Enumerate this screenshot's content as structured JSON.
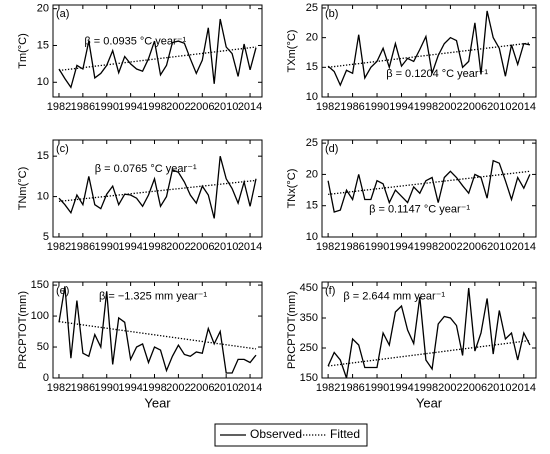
{
  "chart_data": [
    {
      "type": "line",
      "label": "(a)",
      "ylabel": "Tm(°C)",
      "annotation": "β = 0.0935 °C year⁻¹",
      "x": [
        1982,
        1983,
        1984,
        1985,
        1986,
        1987,
        1988,
        1989,
        1990,
        1991,
        1992,
        1993,
        1994,
        1995,
        1996,
        1997,
        1998,
        1999,
        2000,
        2001,
        2002,
        2003,
        2004,
        2005,
        2006,
        2007,
        2008,
        2009,
        2010,
        2011,
        2012,
        2013,
        2014,
        2015
      ],
      "xlim": [
        1981,
        2016
      ],
      "xticks": [
        1982,
        1986,
        1990,
        1994,
        1998,
        2002,
        2006,
        2010,
        2014
      ],
      "ylim": [
        8,
        20.5
      ],
      "yticks": [
        10,
        15,
        20
      ],
      "series": [
        {
          "name": "Observed",
          "color": "#000000",
          "values": [
            11.8,
            10.5,
            9.3,
            12.3,
            11.8,
            15.6,
            10.6,
            11.2,
            12.3,
            14.3,
            11.3,
            13.5,
            12.5,
            11.8,
            11.5,
            13.2,
            15.6,
            11.0,
            12.3,
            15.4,
            15.6,
            15.3,
            13.2,
            11.2,
            13.0,
            17.4,
            9.8,
            18.6,
            14.8,
            13.9,
            10.8,
            15.2,
            11.7,
            14.7
          ]
        },
        {
          "name": "Fitted",
          "color": "#000000",
          "style": "dotted",
          "x": [
            1982,
            2015
          ],
          "values": [
            11.6,
            14.8
          ]
        }
      ]
    },
    {
      "type": "line",
      "label": "(b)",
      "ylabel": "TXm(°C)",
      "annotation": "β = 0.1204 °C year⁻¹",
      "x": [
        1982,
        1983,
        1984,
        1985,
        1986,
        1987,
        1988,
        1989,
        1990,
        1991,
        1992,
        1993,
        1994,
        1995,
        1996,
        1997,
        1998,
        1999,
        2000,
        2001,
        2002,
        2003,
        2004,
        2005,
        2006,
        2007,
        2008,
        2009,
        2010,
        2011,
        2012,
        2013,
        2014,
        2015
      ],
      "xlim": [
        1981,
        2016
      ],
      "xticks": [
        1982,
        1986,
        1990,
        1994,
        1998,
        2002,
        2006,
        2010,
        2014
      ],
      "ylim": [
        10,
        25.5
      ],
      "yticks": [
        10,
        15,
        20,
        25
      ],
      "series": [
        {
          "name": "Observed",
          "color": "#000000",
          "values": [
            15.2,
            14.3,
            12.0,
            14.5,
            14.0,
            20.5,
            13.2,
            15.0,
            16.0,
            18.2,
            15.0,
            19.0,
            15.2,
            16.5,
            16.0,
            18.0,
            20.2,
            14.0,
            17.0,
            19.0,
            20.0,
            19.5,
            15.0,
            16.0,
            22.5,
            13.8,
            24.5,
            20.0,
            18.2,
            13.5,
            18.8,
            15.5,
            19.0,
            18.8
          ]
        },
        {
          "name": "Fitted",
          "color": "#000000",
          "style": "dotted",
          "x": [
            1982,
            2015
          ],
          "values": [
            15.0,
            19.1
          ]
        }
      ]
    },
    {
      "type": "line",
      "label": "(c)",
      "ylabel": "TNm(°C)",
      "annotation": "β = 0.0765 °C year⁻¹",
      "x": [
        1982,
        1983,
        1984,
        1985,
        1986,
        1987,
        1988,
        1989,
        1990,
        1991,
        1992,
        1993,
        1994,
        1995,
        1996,
        1997,
        1998,
        1999,
        2000,
        2001,
        2002,
        2003,
        2004,
        2005,
        2006,
        2007,
        2008,
        2009,
        2010,
        2011,
        2012,
        2013,
        2014,
        2015
      ],
      "xlim": [
        1981,
        2016
      ],
      "xticks": [
        1982,
        1986,
        1990,
        1994,
        1998,
        2002,
        2006,
        2010,
        2014
      ],
      "ylim": [
        5,
        17
      ],
      "yticks": [
        5,
        10,
        15
      ],
      "series": [
        {
          "name": "Observed",
          "color": "#000000",
          "values": [
            9.8,
            9.0,
            8.0,
            10.2,
            9.0,
            12.5,
            9.0,
            8.5,
            10.3,
            11.3,
            9.0,
            10.3,
            10.2,
            9.8,
            8.8,
            10.2,
            12.2,
            8.8,
            10.0,
            13.3,
            13.0,
            11.8,
            10.2,
            9.2,
            11.3,
            10.2,
            7.3,
            15.0,
            12.2,
            11.0,
            9.2,
            11.8,
            8.8,
            12.2
          ]
        },
        {
          "name": "Fitted",
          "color": "#000000",
          "style": "dotted",
          "x": [
            1982,
            2015
          ],
          "values": [
            9.4,
            12.0
          ]
        }
      ]
    },
    {
      "type": "line",
      "label": "(d)",
      "ylabel": "TNx(°C)",
      "annotation": "β = 0.1147 °C year⁻¹",
      "x": [
        1982,
        1983,
        1984,
        1985,
        1986,
        1987,
        1988,
        1989,
        1990,
        1991,
        1992,
        1993,
        1994,
        1995,
        1996,
        1997,
        1998,
        1999,
        2000,
        2001,
        2002,
        2003,
        2004,
        2005,
        2006,
        2007,
        2008,
        2009,
        2010,
        2011,
        2012,
        2013,
        2014,
        2015
      ],
      "xlim": [
        1981,
        2016
      ],
      "xticks": [
        1982,
        1986,
        1990,
        1994,
        1998,
        2002,
        2006,
        2010,
        2014
      ],
      "ylim": [
        10,
        25.5
      ],
      "yticks": [
        10,
        15,
        20,
        25
      ],
      "series": [
        {
          "name": "Observed",
          "color": "#000000",
          "values": [
            19.0,
            14.0,
            14.3,
            17.5,
            16.0,
            20.0,
            16.0,
            16.0,
            19.0,
            18.5,
            15.5,
            17.5,
            16.5,
            15.5,
            18.0,
            17.0,
            19.0,
            19.5,
            15.5,
            19.5,
            20.5,
            19.5,
            18.2,
            17.0,
            20.0,
            19.5,
            16.2,
            22.2,
            21.8,
            19.0,
            16.0,
            19.5,
            17.8,
            20.0
          ]
        },
        {
          "name": "Fitted",
          "color": "#000000",
          "style": "dotted",
          "x": [
            1982,
            2015
          ],
          "values": [
            16.8,
            20.5
          ]
        }
      ]
    },
    {
      "type": "line",
      "label": "(e)",
      "ylabel": "PRCPTOT(mm)",
      "xlabel": "Year",
      "annotation": "β = −1.325 mm year⁻¹",
      "x": [
        1982,
        1983,
        1984,
        1985,
        1986,
        1987,
        1988,
        1989,
        1990,
        1991,
        1992,
        1993,
        1994,
        1995,
        1996,
        1997,
        1998,
        1999,
        2000,
        2001,
        2002,
        2003,
        2004,
        2005,
        2006,
        2007,
        2008,
        2009,
        2010,
        2011,
        2012,
        2013,
        2014,
        2015
      ],
      "xlim": [
        1981,
        2016
      ],
      "xticks": [
        1982,
        1986,
        1990,
        1994,
        1998,
        2002,
        2006,
        2010,
        2014
      ],
      "ylim": [
        0,
        155
      ],
      "yticks": [
        0,
        50,
        100,
        150
      ],
      "series": [
        {
          "name": "Observed",
          "color": "#000000",
          "values": [
            90,
            148,
            32,
            125,
            40,
            35,
            70,
            50,
            140,
            22,
            97,
            90,
            30,
            50,
            55,
            25,
            50,
            45,
            12,
            35,
            53,
            38,
            35,
            42,
            40,
            80,
            55,
            75,
            8,
            8,
            30,
            30,
            25,
            37
          ]
        },
        {
          "name": "Fitted",
          "color": "#000000",
          "style": "dotted",
          "x": [
            1982,
            2015
          ],
          "values": [
            91,
            47
          ]
        }
      ]
    },
    {
      "type": "line",
      "label": "(f)",
      "ylabel": "PRCPTOT(mm)",
      "xlabel": "Year",
      "annotation": "β = 2.644 mm year⁻¹",
      "x": [
        1982,
        1983,
        1984,
        1985,
        1986,
        1987,
        1988,
        1989,
        1990,
        1991,
        1992,
        1993,
        1994,
        1995,
        1996,
        1997,
        1998,
        1999,
        2000,
        2001,
        2002,
        2003,
        2004,
        2005,
        2006,
        2007,
        2008,
        2009,
        2010,
        2011,
        2012,
        2013,
        2014,
        2015
      ],
      "xlim": [
        1981,
        2016
      ],
      "xticks": [
        1982,
        1986,
        1990,
        1994,
        1998,
        2002,
        2006,
        2010,
        2014
      ],
      "ylim": [
        150,
        470
      ],
      "yticks": [
        150,
        250,
        350,
        450
      ],
      "series": [
        {
          "name": "Observed",
          "color": "#000000",
          "values": [
            190,
            235,
            210,
            150,
            280,
            260,
            185,
            185,
            185,
            300,
            260,
            370,
            390,
            310,
            265,
            420,
            210,
            180,
            330,
            355,
            350,
            325,
            225,
            450,
            240,
            300,
            415,
            230,
            375,
            280,
            300,
            210,
            300,
            260
          ]
        },
        {
          "name": "Fitted",
          "color": "#000000",
          "style": "dotted",
          "x": [
            1982,
            2015
          ],
          "values": [
            190,
            275
          ]
        }
      ]
    }
  ]
}
